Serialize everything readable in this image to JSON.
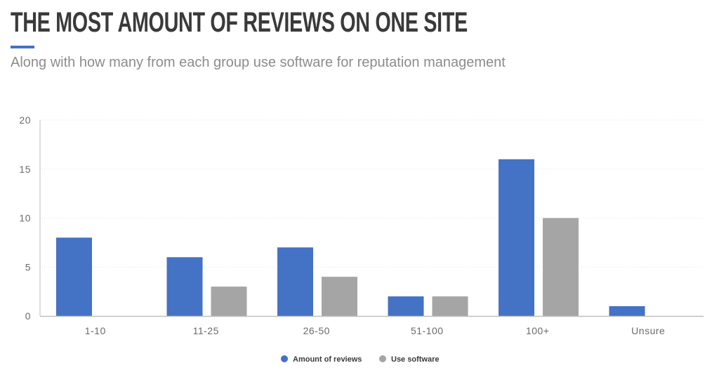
{
  "header": {
    "title": "THE MOST AMOUNT OF REVIEWS ON ONE SITE",
    "subtitle": "Along with how many from each group use software for reputation management"
  },
  "colors": {
    "accent": "#4472c4",
    "series_1": "#4472c4",
    "series_2": "#a5a5a5",
    "grid": "#e6e6e6",
    "axis": "#bfbfbf"
  },
  "chart_data": {
    "type": "bar",
    "categories": [
      "1-10",
      "11-25",
      "26-50",
      "51-100",
      "100+",
      "Unsure"
    ],
    "series": [
      {
        "name": "Amount of reviews",
        "values": [
          8,
          6,
          7,
          2,
          16,
          1
        ]
      },
      {
        "name": "Use software",
        "values": [
          0,
          3,
          4,
          2,
          10,
          0
        ]
      }
    ],
    "yticks": [
      0,
      5,
      10,
      15,
      20
    ],
    "ylim": [
      0,
      20
    ],
    "grid": true,
    "legend": "bottom-center"
  }
}
